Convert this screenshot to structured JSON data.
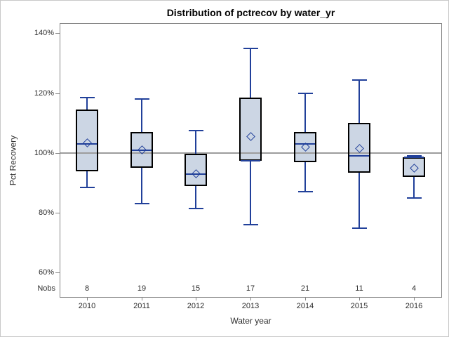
{
  "chart_data": {
    "type": "boxplot",
    "title": "Distribution of pctrecov by water_yr",
    "xlabel": "Water year",
    "ylabel": "Pct Recovery",
    "nobs_label": "Nobs",
    "categories": [
      "2010",
      "2011",
      "2012",
      "2013",
      "2014",
      "2015",
      "2016"
    ],
    "nobs": [
      8,
      19,
      15,
      17,
      21,
      11,
      4
    ],
    "y_ticks": [
      140,
      120,
      100,
      80,
      60
    ],
    "y_tick_suffix": "%",
    "ylim": [
      51.9,
      143.4
    ],
    "refline": 100,
    "grid": "off",
    "series": [
      {
        "category": "2010",
        "n": 8,
        "min": 88.5,
        "q1": 94,
        "median": 103,
        "q3": 114.5,
        "max": 118.5,
        "mean": 103.5
      },
      {
        "category": "2011",
        "n": 19,
        "min": 83,
        "q1": 95,
        "median": 101,
        "q3": 107,
        "max": 118,
        "mean": 101
      },
      {
        "category": "2012",
        "n": 15,
        "min": 81.5,
        "q1": 89,
        "median": 93,
        "q3": 99.8,
        "max": 107.5,
        "mean": 93
      },
      {
        "category": "2013",
        "n": 17,
        "min": 76,
        "q1": 97.5,
        "median": 97.5,
        "q3": 118.5,
        "max": 135,
        "mean": 105.5
      },
      {
        "category": "2014",
        "n": 21,
        "min": 87,
        "q1": 97,
        "median": 103,
        "q3": 107,
        "max": 120,
        "mean": 102
      },
      {
        "category": "2015",
        "n": 11,
        "min": 75,
        "q1": 93.5,
        "median": 99,
        "q3": 110,
        "max": 124.5,
        "mean": 101.5
      },
      {
        "category": "2016",
        "n": 4,
        "min": 85,
        "q1": 92,
        "median": 98.5,
        "q3": 98.5,
        "max": 99,
        "mean": 95
      }
    ],
    "colors": {
      "box_fill": "#ccd6e4",
      "box_border": "#000000",
      "whisker": "#21409a",
      "median": "#21409a",
      "mean_marker": "#21409a",
      "refline": "#9d9d9d",
      "axis": "#868686",
      "text": "#2e2e2e"
    }
  }
}
